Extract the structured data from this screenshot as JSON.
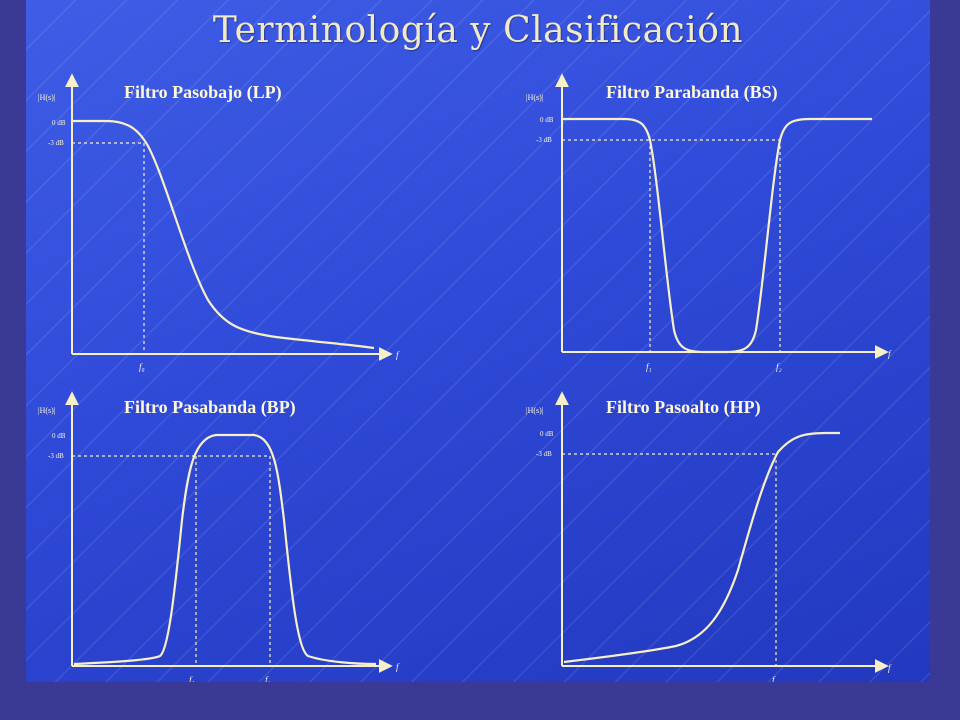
{
  "title": "Terminología y Clasificación",
  "plots": [
    {
      "key": "lp",
      "title": "Filtro Pasobajo (LP)",
      "y_axis_label": "|H(s)|",
      "level_labels": [
        "0 dB",
        "-3 dB"
      ],
      "x_axis_label": "f",
      "cutoff_labels": [
        "f₀"
      ]
    },
    {
      "key": "bs",
      "title": "Filtro Parabanda (BS)",
      "y_axis_label": "|H(s)|",
      "level_labels": [
        "0 dB",
        "-3 dB"
      ],
      "x_axis_label": "f",
      "cutoff_labels": [
        "f₁",
        "f₂"
      ]
    },
    {
      "key": "bp",
      "title": "Filtro Pasabanda (BP)",
      "y_axis_label": "|H(s)|",
      "level_labels": [
        "0 dB",
        "-3 dB"
      ],
      "x_axis_label": "f",
      "cutoff_labels": [
        "f₁",
        "f₂"
      ]
    },
    {
      "key": "hp",
      "title": "Filtro Pasoalto (HP)",
      "y_axis_label": "|H(s)|",
      "level_labels": [
        "0 dB",
        "-3 dB"
      ],
      "x_axis_label": "f",
      "cutoff_labels": [
        "f"
      ]
    }
  ],
  "colors": {
    "curve": "#f7efc6",
    "axis": "#f7efc6",
    "dashed": "#f7efc6",
    "text": "#fff8d8"
  }
}
